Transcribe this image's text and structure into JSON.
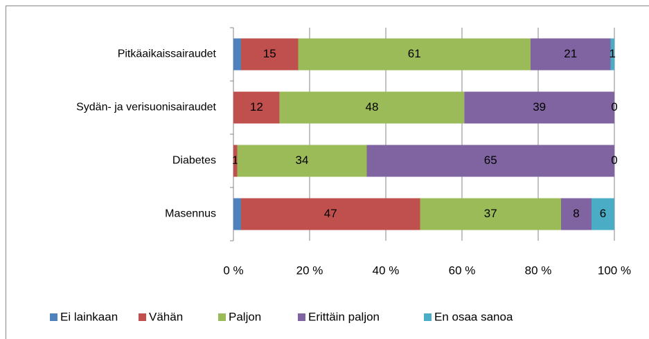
{
  "chart_data": {
    "type": "stacked_bar_100",
    "orientation": "horizontal",
    "categories": [
      "Pitkäaikaissairaudet",
      "Sydän- ja verisuonisairaudet",
      "Diabetes",
      "Masennus"
    ],
    "series": [
      {
        "name": "Ei lainkaan",
        "color": "#4f81bd",
        "values": [
          2,
          null,
          null,
          2
        ],
        "data_labels": false
      },
      {
        "name": "Vähän",
        "color": "#c0504d",
        "values": [
          15,
          12,
          1,
          47
        ],
        "data_labels": true
      },
      {
        "name": "Paljon",
        "color": "#9bbb59",
        "values": [
          61,
          48,
          34,
          37
        ],
        "data_labels": true
      },
      {
        "name": "Erittäin paljon",
        "color": "#8064a2",
        "values": [
          21,
          39,
          65,
          8
        ],
        "data_labels": true
      },
      {
        "name": "En osaa sanoa",
        "color": "#4bacc6",
        "values": [
          1,
          0,
          0,
          6
        ],
        "data_labels": true
      }
    ],
    "xlim": [
      0,
      100
    ],
    "xticks": [
      {
        "value": 0,
        "label": "0 %"
      },
      {
        "value": 20,
        "label": "20 %"
      },
      {
        "value": 40,
        "label": "40 %"
      },
      {
        "value": 60,
        "label": "60 %"
      },
      {
        "value": 80,
        "label": "80 %"
      },
      {
        "value": 100,
        "label": "100 %"
      }
    ],
    "grid": true,
    "legend": "bottom"
  }
}
